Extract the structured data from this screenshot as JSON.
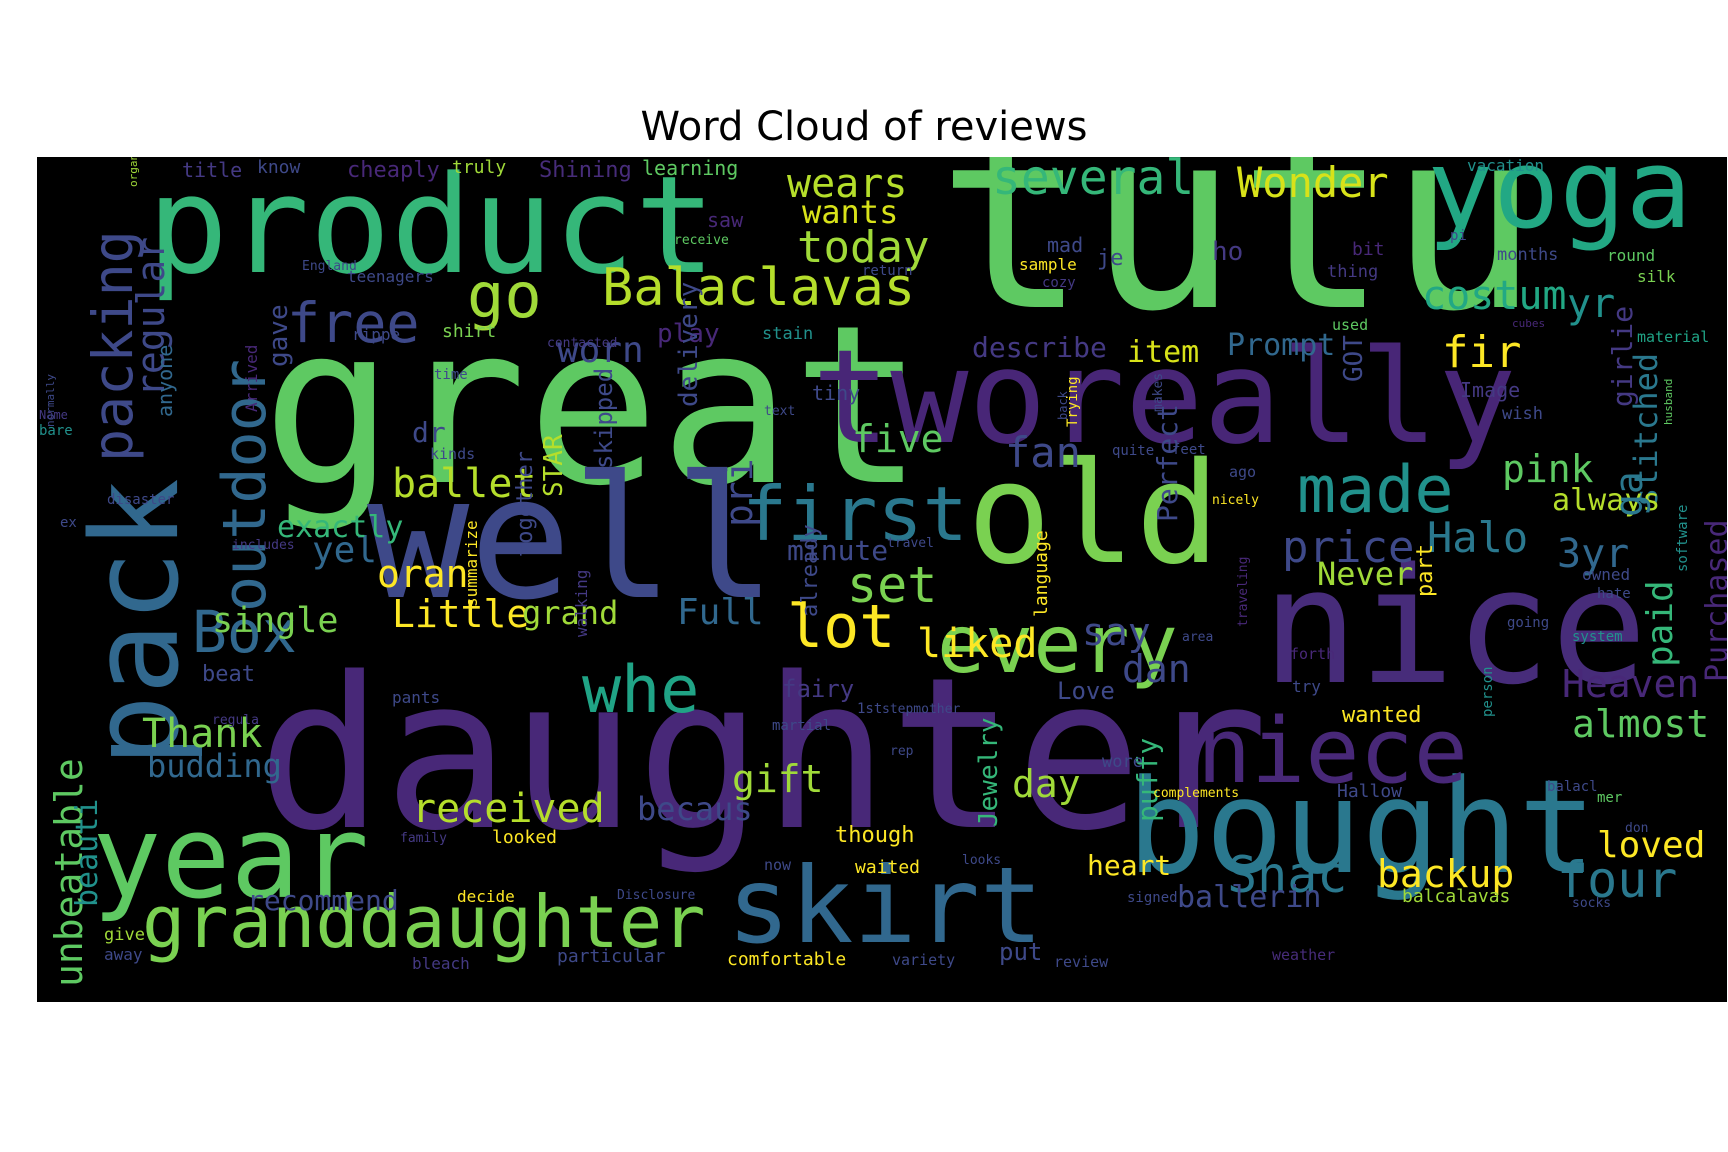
{
  "chart_data": {
    "type": "wordcloud",
    "title": "Word Cloud of reviews",
    "background": "#000000",
    "colormap": "viridis",
    "words": [
      {
        "text": "tutu",
        "color": "#5ec962"
      },
      {
        "text": "great",
        "color": "#5ec962"
      },
      {
        "text": "daughter",
        "color": "#482878"
      },
      {
        "text": "product",
        "color": "#35b779"
      },
      {
        "text": "well",
        "color": "#3e4989"
      },
      {
        "text": "tworeally",
        "color": "#482677"
      },
      {
        "text": "nice",
        "color": "#472c7a"
      },
      {
        "text": "old",
        "color": "#7ad151"
      },
      {
        "text": "yoga",
        "color": "#22a884"
      },
      {
        "text": "bought",
        "color": "#2a788e"
      },
      {
        "text": "pack",
        "color": "#31688e"
      },
      {
        "text": "year",
        "color": "#5ec962"
      },
      {
        "text": "skirt",
        "color": "#31688e"
      },
      {
        "text": "granddaughter",
        "color": "#7ad151"
      },
      {
        "text": "niece",
        "color": "#482878"
      },
      {
        "text": "every",
        "color": "#7ad151"
      },
      {
        "text": "first",
        "color": "#2a788e"
      },
      {
        "text": "made",
        "color": "#21918c"
      },
      {
        "text": "packing",
        "color": "#3e4989"
      },
      {
        "text": "outdoor",
        "color": "#31688e"
      },
      {
        "text": "Balaclavas",
        "color": "#b5de2b"
      },
      {
        "text": "free",
        "color": "#3e4989"
      },
      {
        "text": "go",
        "color": "#a0da39"
      },
      {
        "text": "whe",
        "color": "#20a486"
      },
      {
        "text": "Box",
        "color": "#31688e"
      },
      {
        "text": "lot",
        "color": "#fde725"
      },
      {
        "text": "unbeatable",
        "color": "#5ec962"
      },
      {
        "text": "several",
        "color": "#35b779"
      },
      {
        "text": "wears",
        "color": "#b5de2b"
      },
      {
        "text": "Wonder",
        "color": "#d8e219"
      },
      {
        "text": "today",
        "color": "#a0da39"
      },
      {
        "text": "wants",
        "color": "#d8e219"
      },
      {
        "text": "costum",
        "color": "#22a884"
      },
      {
        "text": "regular",
        "color": "#3e4989"
      },
      {
        "text": "fir",
        "color": "#fde725"
      },
      {
        "text": "yr",
        "color": "#21918c"
      },
      {
        "text": "stitched",
        "color": "#2a788e"
      },
      {
        "text": "pink",
        "color": "#5ec962"
      },
      {
        "text": "Halo",
        "color": "#2a788e"
      },
      {
        "text": "price",
        "color": "#3e4989"
      },
      {
        "text": "3yr",
        "color": "#31688e"
      },
      {
        "text": "set",
        "color": "#7ad151"
      },
      {
        "text": "fan",
        "color": "#3e4989"
      },
      {
        "text": "five",
        "color": "#5ec962"
      },
      {
        "text": "ballet",
        "color": "#b5de2b"
      },
      {
        "text": "worn",
        "color": "#3e4989"
      },
      {
        "text": "describe",
        "color": "#443983"
      },
      {
        "text": "item",
        "color": "#d8e219"
      },
      {
        "text": "Prompt",
        "color": "#31688e"
      },
      {
        "text": "gave",
        "color": "#3e4989"
      },
      {
        "text": "single",
        "color": "#7ad151"
      },
      {
        "text": "Little",
        "color": "#fde725"
      },
      {
        "text": "oran",
        "color": "#fde725"
      },
      {
        "text": "yel",
        "color": "#31688e"
      },
      {
        "text": "exactly",
        "color": "#35b779"
      },
      {
        "text": "grand",
        "color": "#a0da39"
      },
      {
        "text": "Full",
        "color": "#31688e"
      },
      {
        "text": "liked",
        "color": "#fde725"
      },
      {
        "text": "say",
        "color": "#3e4989"
      },
      {
        "text": "dan",
        "color": "#3e4989"
      },
      {
        "text": "Heaven",
        "color": "#482878"
      },
      {
        "text": "almost",
        "color": "#5ec962"
      },
      {
        "text": "paid",
        "color": "#35b779"
      },
      {
        "text": "always",
        "color": "#b5de2b"
      },
      {
        "text": "Never",
        "color": "#a0da39"
      },
      {
        "text": "Thank",
        "color": "#7ad151"
      },
      {
        "text": "budding",
        "color": "#31688e"
      },
      {
        "text": "received",
        "color": "#b5de2b"
      },
      {
        "text": "gift",
        "color": "#a0da39"
      },
      {
        "text": "day",
        "color": "#a0da39"
      },
      {
        "text": "Shac",
        "color": "#2a788e"
      },
      {
        "text": "backup",
        "color": "#fde725"
      },
      {
        "text": "four",
        "color": "#2a788e"
      },
      {
        "text": "loved",
        "color": "#fde725"
      },
      {
        "text": "Purchased",
        "color": "#482878"
      },
      {
        "text": "heart",
        "color": "#fde725"
      },
      {
        "text": "ballerin",
        "color": "#3e4989"
      },
      {
        "text": "recommend",
        "color": "#3e4989"
      },
      {
        "text": "becaus",
        "color": "#3e4989"
      },
      {
        "text": "beauti",
        "color": "#21918c"
      },
      {
        "text": "Perfect",
        "color": "#3e4989"
      },
      {
        "text": "Jewelry",
        "color": "#35b779"
      },
      {
        "text": "puffy",
        "color": "#35b779"
      },
      {
        "text": "girlie",
        "color": "#443983"
      },
      {
        "text": "ga",
        "color": "#2a788e"
      },
      {
        "text": "title",
        "color": "#443983"
      },
      {
        "text": "know",
        "color": "#3e4989"
      },
      {
        "text": "cheaply",
        "color": "#482878"
      },
      {
        "text": "truly",
        "color": "#a0da39"
      },
      {
        "text": "Shining",
        "color": "#472c7a"
      },
      {
        "text": "learning",
        "color": "#5ec962"
      },
      {
        "text": "vacation",
        "color": "#21918c"
      },
      {
        "text": "mad",
        "color": "#3e4989"
      },
      {
        "text": "je",
        "color": "#3e4989"
      },
      {
        "text": "ho",
        "color": "#443983"
      },
      {
        "text": "bit",
        "color": "#482878"
      },
      {
        "text": "thing",
        "color": "#443983"
      },
      {
        "text": "months",
        "color": "#3e4989"
      },
      {
        "text": "round",
        "color": "#5ec962"
      },
      {
        "text": "silk",
        "color": "#7ad151"
      },
      {
        "text": "sample",
        "color": "#fde725"
      },
      {
        "text": "cozy",
        "color": "#443983"
      },
      {
        "text": "teenagers",
        "color": "#3e4989"
      },
      {
        "text": "England",
        "color": "#3e4989"
      },
      {
        "text": "return",
        "color": "#3e4989"
      },
      {
        "text": "receive",
        "color": "#5ec962"
      },
      {
        "text": "saw",
        "color": "#482878"
      },
      {
        "text": "organizers",
        "color": "#a0da39"
      },
      {
        "text": "anyone",
        "color": "#31688e"
      },
      {
        "text": "rippe",
        "color": "#3e4989"
      },
      {
        "text": "shirt",
        "color": "#7ad151"
      },
      {
        "text": "contacted",
        "color": "#443983"
      },
      {
        "text": "play",
        "color": "#482878"
      },
      {
        "text": "stain",
        "color": "#21918c"
      },
      {
        "text": "used",
        "color": "#5ec962"
      },
      {
        "text": "material",
        "color": "#20a486"
      },
      {
        "text": "cubes",
        "color": "#482878"
      },
      {
        "text": "pi",
        "color": "#3e4989"
      },
      {
        "text": "time",
        "color": "#3e4989"
      },
      {
        "text": "tiny",
        "color": "#3e4989"
      },
      {
        "text": "text",
        "color": "#3e4989"
      },
      {
        "text": "makes",
        "color": "#3e4989"
      },
      {
        "text": "GOT",
        "color": "#3e4989"
      },
      {
        "text": "Image",
        "color": "#443983"
      },
      {
        "text": "wish",
        "color": "#3e4989"
      },
      {
        "text": "husband",
        "color": "#5ec962"
      },
      {
        "text": "Name",
        "color": "#443983"
      },
      {
        "text": "bare",
        "color": "#21918c"
      },
      {
        "text": "dr",
        "color": "#3e4989"
      },
      {
        "text": "kinds",
        "color": "#3e4989"
      },
      {
        "text": "Arrived",
        "color": "#482878"
      },
      {
        "text": "back",
        "color": "#3e4989"
      },
      {
        "text": "quite",
        "color": "#3e4989"
      },
      {
        "text": "feet",
        "color": "#3e4989"
      },
      {
        "text": "ago",
        "color": "#3e4989"
      },
      {
        "text": "normally",
        "color": "#3e4989"
      },
      {
        "text": "ex",
        "color": "#3e4989"
      },
      {
        "text": "disaster",
        "color": "#3e4989"
      },
      {
        "text": "includes",
        "color": "#443983"
      },
      {
        "text": "delivery",
        "color": "#3e4989"
      },
      {
        "text": "minute",
        "color": "#3e4989"
      },
      {
        "text": "pri",
        "color": "#3e4989"
      },
      {
        "text": "travel",
        "color": "#3e4989"
      },
      {
        "text": "Trying",
        "color": "#fde725"
      },
      {
        "text": "nicely",
        "color": "#fde725"
      },
      {
        "text": "owned",
        "color": "#3e4989"
      },
      {
        "text": "hate",
        "color": "#3e4989"
      },
      {
        "text": "going",
        "color": "#3e4989"
      },
      {
        "text": "area",
        "color": "#3e4989"
      },
      {
        "text": "traveling",
        "color": "#482878"
      },
      {
        "text": "system",
        "color": "#21918c"
      },
      {
        "text": "software",
        "color": "#21918c"
      },
      {
        "text": "forth",
        "color": "#482878"
      },
      {
        "text": "try",
        "color": "#3e4989"
      },
      {
        "text": "STAR",
        "color": "#b5de2b"
      },
      {
        "text": "skipped",
        "color": "#3e4989"
      },
      {
        "text": "beat",
        "color": "#3e4989"
      },
      {
        "text": "fairy",
        "color": "#443983"
      },
      {
        "text": "pants",
        "color": "#3e4989"
      },
      {
        "text": "regula",
        "color": "#443983"
      },
      {
        "text": "together",
        "color": "#3e4989"
      },
      {
        "text": "martial",
        "color": "#3e4989"
      },
      {
        "text": "1st",
        "color": "#3e4989"
      },
      {
        "text": "stepmother",
        "color": "#3e4989"
      },
      {
        "text": "Love",
        "color": "#3e4989"
      },
      {
        "text": "language",
        "color": "#fde725"
      },
      {
        "text": "part",
        "color": "#fde725"
      },
      {
        "text": "wanted",
        "color": "#fde725"
      },
      {
        "text": "person",
        "color": "#21918c"
      },
      {
        "text": "summarize",
        "color": "#fde725"
      },
      {
        "text": "walking",
        "color": "#443983"
      },
      {
        "text": "rep",
        "color": "#3e4989"
      },
      {
        "text": "already",
        "color": "#3e4989"
      },
      {
        "text": "wore",
        "color": "#3e4989"
      },
      {
        "text": "complements",
        "color": "#fde725"
      },
      {
        "text": "Hallow",
        "color": "#3e4989"
      },
      {
        "text": "balacl",
        "color": "#3e4989"
      },
      {
        "text": "mer",
        "color": "#5ec962"
      },
      {
        "text": "don",
        "color": "#3e4989"
      },
      {
        "text": "family",
        "color": "#443983"
      },
      {
        "text": "looked",
        "color": "#fde725"
      },
      {
        "text": "though",
        "color": "#fde725"
      },
      {
        "text": "now",
        "color": "#3e4989"
      },
      {
        "text": "waited",
        "color": "#fde725"
      },
      {
        "text": "looks",
        "color": "#3e4989"
      },
      {
        "text": "decide",
        "color": "#fde725"
      },
      {
        "text": "Disclosure",
        "color": "#3e4989"
      },
      {
        "text": "signed",
        "color": "#3e4989"
      },
      {
        "text": "balcalavas",
        "color": "#a0da39"
      },
      {
        "text": "socks",
        "color": "#3e4989"
      },
      {
        "text": "give",
        "color": "#a0da39"
      },
      {
        "text": "away",
        "color": "#3e4989"
      },
      {
        "text": "bleach",
        "color": "#443983"
      },
      {
        "text": "particular",
        "color": "#3e4989"
      },
      {
        "text": "comfortable",
        "color": "#fde725"
      },
      {
        "text": "variety",
        "color": "#3e4989"
      },
      {
        "text": "put",
        "color": "#3e4989"
      },
      {
        "text": "review",
        "color": "#3e4989"
      },
      {
        "text": "weather",
        "color": "#472c7a"
      }
    ]
  }
}
